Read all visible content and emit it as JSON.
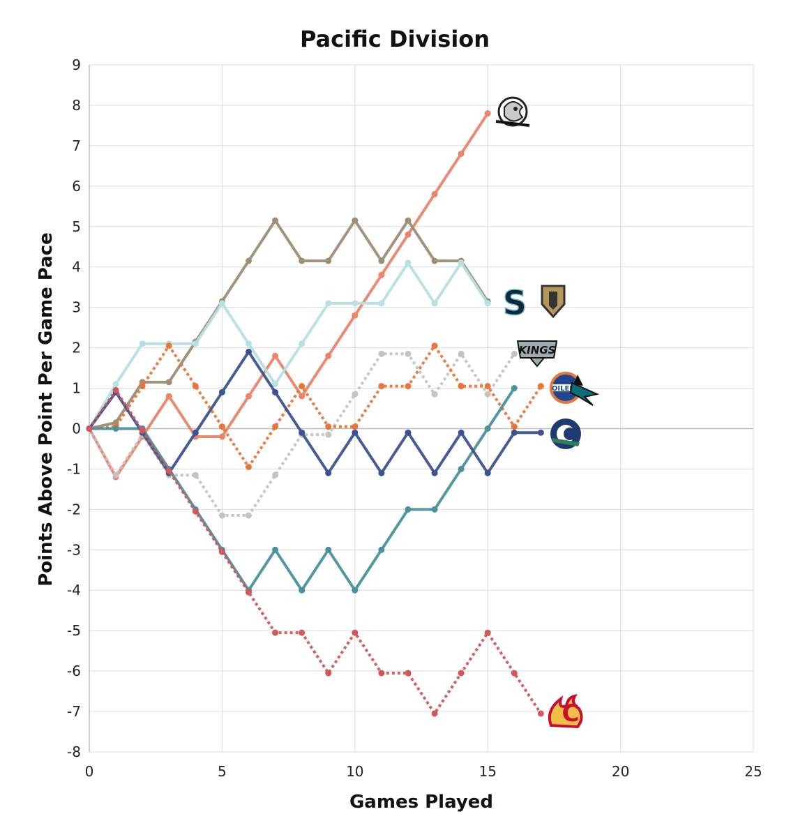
{
  "chart_data": {
    "type": "line",
    "title": "Pacific Division",
    "xlabel": "Games Played",
    "ylabel": "Points Above Point Per Game Pace",
    "xlim": [
      0,
      25
    ],
    "ylim": [
      -8,
      9
    ],
    "x_ticks": [
      0,
      5,
      10,
      15,
      20,
      25
    ],
    "y_ticks": [
      -8,
      -7,
      -6,
      -5,
      -4,
      -3,
      -2,
      -1,
      0,
      1,
      2,
      3,
      4,
      5,
      6,
      7,
      8,
      9
    ],
    "grid": true,
    "series": [
      {
        "name": "Anaheim Ducks",
        "color": "#e8856a",
        "style": "solid",
        "logo": "ducks-logo",
        "values": [
          0,
          -1.2,
          -0.2,
          0.8,
          -0.2,
          -0.2,
          0.8,
          1.8,
          0.8,
          1.8,
          2.8,
          3.8,
          4.8,
          5.8,
          6.8,
          7.8
        ]
      },
      {
        "name": "Vegas Golden Knights",
        "color": "#9b8f75",
        "style": "solid",
        "logo": "golden-knights-logo",
        "values": [
          0,
          0.15,
          1.15,
          1.15,
          2.15,
          3.15,
          4.15,
          5.15,
          4.15,
          4.15,
          5.15,
          4.15,
          5.15,
          4.15,
          4.15,
          3.15
        ]
      },
      {
        "name": "Seattle Kraken",
        "color": "#b7e0e0",
        "style": "solid",
        "logo": "kraken-logo",
        "values": [
          0,
          1.1,
          2.1,
          2.1,
          2.1,
          3.1,
          2.1,
          1.1,
          2.1,
          3.1,
          3.1,
          3.1,
          4.1,
          3.1,
          4.1,
          3.1
        ]
      },
      {
        "name": "Los Angeles Kings",
        "color": "#c4c4c4",
        "style": "dotted",
        "logo": "kings-logo",
        "values": [
          0,
          -1.15,
          -0.15,
          -1.15,
          -1.15,
          -2.15,
          -2.15,
          -1.15,
          -0.15,
          -0.15,
          0.85,
          1.85,
          1.85,
          0.85,
          1.85,
          0.85,
          1.85
        ]
      },
      {
        "name": "Edmonton Oilers",
        "color": "#e8763a",
        "style": "dotted",
        "logo": "oilers-logo",
        "values": [
          0,
          0.05,
          1.05,
          2.05,
          1.05,
          0.05,
          -0.95,
          0.05,
          1.05,
          0.05,
          0.05,
          1.05,
          1.05,
          2.05,
          1.05,
          1.05,
          0.05,
          1.05
        ]
      },
      {
        "name": "San Jose Sharks",
        "color": "#4a929b",
        "style": "solid",
        "logo": "sharks-logo",
        "values": [
          0,
          0,
          0,
          -1,
          -2,
          -3,
          -4,
          -3,
          -4,
          -3,
          -4,
          -3,
          -2,
          -2,
          -1,
          0,
          1
        ]
      },
      {
        "name": "Vancouver Canucks",
        "color": "#3b5390",
        "style": "solid",
        "logo": "canucks-logo",
        "values": [
          0,
          0.9,
          -0.1,
          -1.1,
          -0.1,
          0.9,
          1.9,
          0.9,
          -0.1,
          -1.1,
          -0.1,
          -1.1,
          -0.1,
          -1.1,
          -0.1,
          -1.1,
          -0.1,
          -0.1
        ]
      },
      {
        "name": "Calgary Flames",
        "color": "#d2575a",
        "style": "dotted",
        "logo": "flames-logo",
        "values": [
          0,
          0.95,
          -0.05,
          -1.05,
          -2.05,
          -3.05,
          -4.05,
          -5.05,
          -5.05,
          -6.05,
          -5.05,
          -6.05,
          -6.05,
          -7.05,
          -6.05,
          -5.05,
          -6.05,
          -7.05
        ]
      }
    ]
  }
}
